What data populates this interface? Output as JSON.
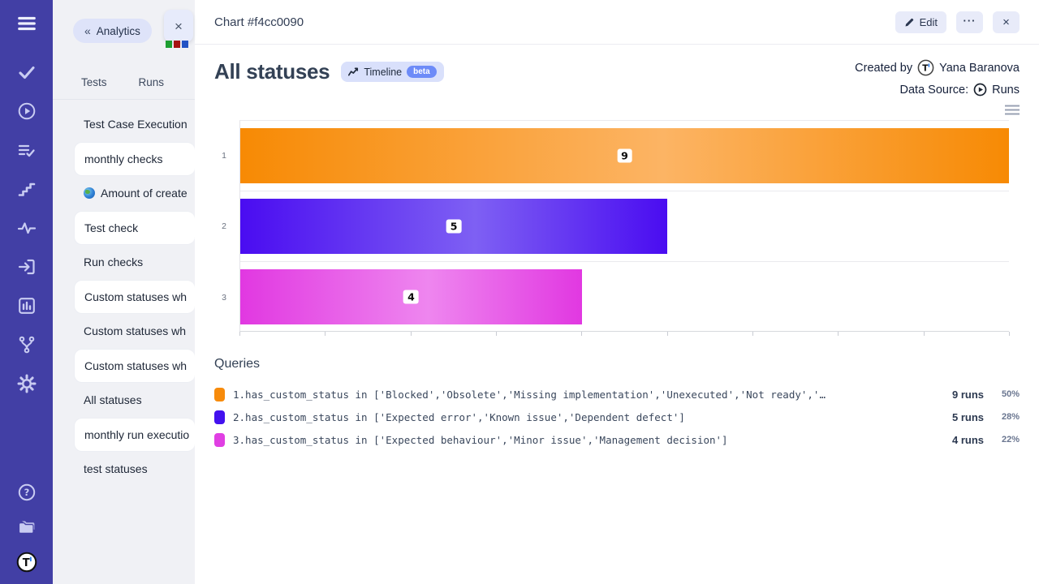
{
  "panel": {
    "back_label": "Analytics",
    "back_chevrons": "«",
    "tab_close": "×",
    "tabs": [
      {
        "label": "Tests"
      },
      {
        "label": "Runs"
      }
    ],
    "items": [
      {
        "label": "Test Case Execution",
        "card": false,
        "icon": null
      },
      {
        "label": "monthly checks",
        "card": true,
        "icon": null
      },
      {
        "label": "Amount of create",
        "card": false,
        "icon": "globe"
      },
      {
        "label": "Test check",
        "card": true,
        "icon": null
      },
      {
        "label": "Run checks",
        "card": false,
        "icon": null
      },
      {
        "label": "Custom statuses wh",
        "card": true,
        "icon": null
      },
      {
        "label": "Custom statuses wh",
        "card": false,
        "icon": null
      },
      {
        "label": "Custom statuses wh",
        "card": true,
        "icon": null
      },
      {
        "label": "All statuses",
        "card": false,
        "icon": null
      },
      {
        "label": "monthly run executio",
        "card": true,
        "icon": null
      },
      {
        "label": "test statuses",
        "card": false,
        "icon": null
      }
    ],
    "mini_bar_colors": [
      "#1d9e31",
      "#a61212",
      "#2353c4"
    ]
  },
  "topbar": {
    "title": "Chart #f4cc0090",
    "edit_label": "Edit",
    "more_label": "···",
    "close_label": "×"
  },
  "header": {
    "title": "All statuses",
    "timeline_label": "Timeline",
    "beta_label": "beta",
    "created_by_label": "Created by",
    "author": "Yana Baranova",
    "data_source_label": "Data Source:",
    "data_source_value": "Runs"
  },
  "chart_data": {
    "type": "bar",
    "orientation": "horizontal",
    "title": "All statuses",
    "categories": [
      "1",
      "2",
      "3"
    ],
    "values": [
      9,
      5,
      4
    ],
    "value_labels": [
      "9",
      "5",
      "4"
    ],
    "xlim": [
      0,
      9
    ],
    "x_ticks": [
      0,
      1,
      2,
      3,
      4,
      5,
      6,
      7,
      8,
      9
    ],
    "grid": true,
    "legend_position": "none",
    "bar_colors": [
      {
        "edge": "#f78a04",
        "mid": "#fcb464"
      },
      {
        "edge": "#4a0cf1",
        "mid": "#7e60f3"
      },
      {
        "edge": "#e138e1",
        "mid": "#ee86ef"
      }
    ]
  },
  "queries": {
    "title": "Queries",
    "rows": [
      {
        "color": "#f78b0b",
        "text": "1.has_custom_status in ['Blocked','Obsolete','Missing implementation','Unexecuted','Not ready','…",
        "runs": "9 runs",
        "pct": "50%"
      },
      {
        "color": "#4311ef",
        "text": "2.has_custom_status in ['Expected error','Known issue','Dependent defect']",
        "runs": "5 runs",
        "pct": "28%"
      },
      {
        "color": "#e03fe3",
        "text": "3.has_custom_status in ['Expected behaviour','Minor issue','Management decision']",
        "runs": "4 runs",
        "pct": "22%"
      }
    ]
  }
}
